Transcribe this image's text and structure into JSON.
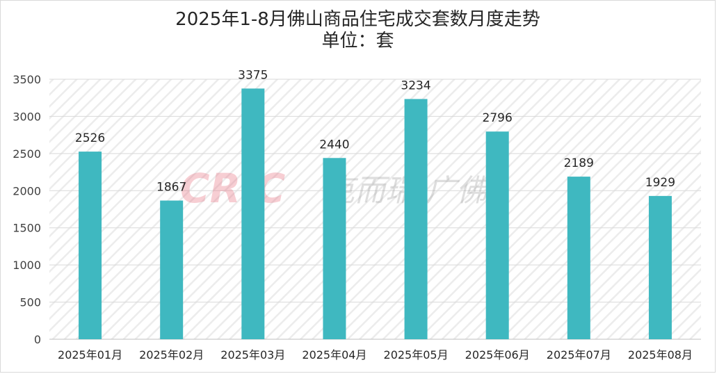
{
  "chart_data": {
    "type": "bar",
    "title": "2025年1-8月佛山商品住宅成交套数月度走势",
    "subtitle": "单位：套",
    "categories": [
      "2025年01月",
      "2025年02月",
      "2025年03月",
      "2025年04月",
      "2025年05月",
      "2025年06月",
      "2025年07月",
      "2025年08月"
    ],
    "values": [
      2526,
      1867,
      3375,
      2440,
      3234,
      2796,
      2189,
      1929
    ],
    "ylim": [
      0,
      3500
    ],
    "yticks": [
      0,
      500,
      1000,
      1500,
      2000,
      2500,
      3000,
      3500
    ],
    "grid": true,
    "legend": "none",
    "bar_color": "#3fb8c0"
  },
  "watermark": {
    "latin": "CRIC",
    "cjk": "克而瑞·广佛",
    "latin_color": "#e8687a",
    "cjk_color": "#9a9a9a"
  }
}
